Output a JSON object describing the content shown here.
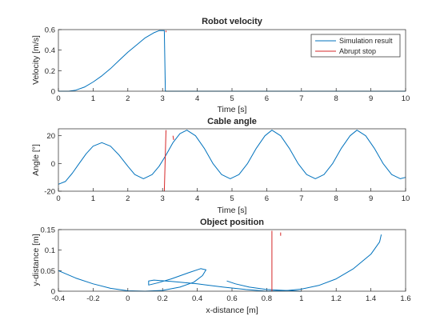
{
  "colors": {
    "simulation": "#0072bd",
    "stop": "#d62728",
    "axis": "#262626",
    "background": "#ffffff"
  },
  "chart_data": [
    {
      "type": "line",
      "title": "Robot velocity",
      "xlabel": "Time [s]",
      "ylabel": "Velocity [m/s]",
      "xlim": [
        0,
        10
      ],
      "ylim": [
        0,
        0.6
      ],
      "xticks": [
        "0",
        "1",
        "2",
        "3",
        "4",
        "5",
        "6",
        "7",
        "8",
        "9",
        "10"
      ],
      "yticks": [
        "0",
        "0.2",
        "0.4",
        "0.6"
      ],
      "grid": false,
      "legend_location": "top-right",
      "series": [
        {
          "name": "Simulation result",
          "points": [
            [
              0,
              0
            ],
            [
              0.3,
              0
            ],
            [
              0.5,
              0.01
            ],
            [
              0.75,
              0.04
            ],
            [
              1.0,
              0.09
            ],
            [
              1.25,
              0.15
            ],
            [
              1.5,
              0.22
            ],
            [
              1.75,
              0.3
            ],
            [
              2.0,
              0.38
            ],
            [
              2.25,
              0.45
            ],
            [
              2.5,
              0.52
            ],
            [
              2.75,
              0.57
            ],
            [
              2.9,
              0.59
            ],
            [
              3.05,
              0.59
            ],
            [
              3.08,
              0.0
            ],
            [
              10,
              0
            ]
          ]
        },
        {
          "name": "Abrupt stop",
          "points": [
            [
              3.1,
              0.59
            ],
            [
              3.1,
              0.575
            ]
          ]
        }
      ]
    },
    {
      "type": "line",
      "title": "Cable angle",
      "xlabel": "Time [s]",
      "ylabel": "Angle [°]",
      "xlim": [
        0,
        10
      ],
      "ylim": [
        -20,
        25
      ],
      "xticks": [
        "0",
        "1",
        "2",
        "3",
        "4",
        "5",
        "6",
        "7",
        "8",
        "9",
        "10"
      ],
      "yticks": [
        "-20",
        "0",
        "20"
      ],
      "grid": false,
      "series": [
        {
          "name": "Simulation result",
          "points": [
            [
              0,
              -15
            ],
            [
              0.2,
              -13
            ],
            [
              0.4,
              -7
            ],
            [
              0.6,
              0
            ],
            [
              0.8,
              7
            ],
            [
              1.0,
              12.5
            ],
            [
              1.25,
              15
            ],
            [
              1.5,
              12.5
            ],
            [
              1.75,
              6
            ],
            [
              2.0,
              -2
            ],
            [
              2.2,
              -8
            ],
            [
              2.45,
              -11
            ],
            [
              2.7,
              -8
            ],
            [
              2.9,
              -2
            ],
            [
              3.1,
              6
            ],
            [
              3.3,
              15
            ],
            [
              3.5,
              21.5
            ],
            [
              3.7,
              24
            ],
            [
              3.95,
              20
            ],
            [
              4.2,
              11
            ],
            [
              4.45,
              0
            ],
            [
              4.7,
              -8
            ],
            [
              4.95,
              -11
            ],
            [
              5.2,
              -8
            ],
            [
              5.45,
              0
            ],
            [
              5.7,
              11
            ],
            [
              5.95,
              20
            ],
            [
              6.15,
              24
            ],
            [
              6.4,
              20
            ],
            [
              6.65,
              11
            ],
            [
              6.9,
              0
            ],
            [
              7.15,
              -8
            ],
            [
              7.4,
              -11
            ],
            [
              7.65,
              -8
            ],
            [
              7.9,
              0
            ],
            [
              8.15,
              11
            ],
            [
              8.4,
              20
            ],
            [
              8.6,
              24
            ],
            [
              8.85,
              20
            ],
            [
              9.1,
              11
            ],
            [
              9.35,
              0
            ],
            [
              9.6,
              -8
            ],
            [
              9.85,
              -11
            ],
            [
              10,
              -10
            ]
          ]
        },
        {
          "name": "Abrupt stop",
          "points": [
            [
              3.05,
              -20
            ],
            [
              3.1,
              24
            ]
          ]
        },
        {
          "name": "Abrupt stop",
          "points": [
            [
              3.3,
              20
            ],
            [
              3.32,
              17
            ]
          ]
        }
      ]
    },
    {
      "type": "line",
      "title": "Object position",
      "xlabel": "x-distance [m]",
      "ylabel": "y-distance [m]",
      "xlim": [
        -0.4,
        1.6
      ],
      "ylim": [
        0,
        0.15
      ],
      "xticks": [
        "-0.4",
        "-0.2",
        "0",
        "0.2",
        "0.4",
        "0.6",
        "0.8",
        "1",
        "1.2",
        "1.4",
        "1.6"
      ],
      "yticks": [
        "0",
        "0.05",
        "0.1",
        "0.15"
      ],
      "grid": false,
      "series": [
        {
          "name": "Simulation result",
          "points": [
            [
              -0.4,
              0.05
            ],
            [
              -0.3,
              0.032
            ],
            [
              -0.2,
              0.018
            ],
            [
              -0.1,
              0.007
            ],
            [
              0.0,
              0.001
            ],
            [
              0.1,
              0.0
            ],
            [
              0.2,
              0.002
            ],
            [
              0.3,
              0.01
            ],
            [
              0.38,
              0.022
            ],
            [
              0.43,
              0.038
            ],
            [
              0.45,
              0.052
            ],
            [
              0.42,
              0.055
            ],
            [
              0.35,
              0.045
            ],
            [
              0.25,
              0.03
            ],
            [
              0.17,
              0.02
            ],
            [
              0.12,
              0.015
            ],
            [
              0.12,
              0.025
            ],
            [
              0.15,
              0.027
            ],
            [
              0.25,
              0.024
            ],
            [
              0.4,
              0.018
            ],
            [
              0.55,
              0.01
            ],
            [
              0.68,
              0.004
            ],
            [
              0.8,
              0.0
            ],
            [
              0.9,
              0.001
            ],
            [
              1.0,
              0.005
            ],
            [
              1.1,
              0.014
            ],
            [
              1.2,
              0.03
            ],
            [
              1.3,
              0.055
            ],
            [
              1.4,
              0.09
            ],
            [
              1.45,
              0.12
            ],
            [
              1.46,
              0.138
            ]
          ]
        },
        {
          "name": "Simulation result",
          "points": [
            [
              0.57,
              0.025
            ],
            [
              0.62,
              0.018
            ],
            [
              0.7,
              0.01
            ],
            [
              0.8,
              0.004
            ],
            [
              0.9,
              0.002
            ],
            [
              1.0,
              0.0
            ]
          ]
        },
        {
          "name": "Abrupt stop",
          "points": [
            [
              0.83,
              0.0
            ],
            [
              0.83,
              0.147
            ]
          ]
        },
        {
          "name": "Abrupt stop",
          "points": [
            [
              0.88,
              0.143
            ],
            [
              0.88,
              0.135
            ]
          ]
        }
      ]
    }
  ],
  "legend": {
    "entries": [
      "Simulation result",
      "Abrupt stop"
    ]
  }
}
